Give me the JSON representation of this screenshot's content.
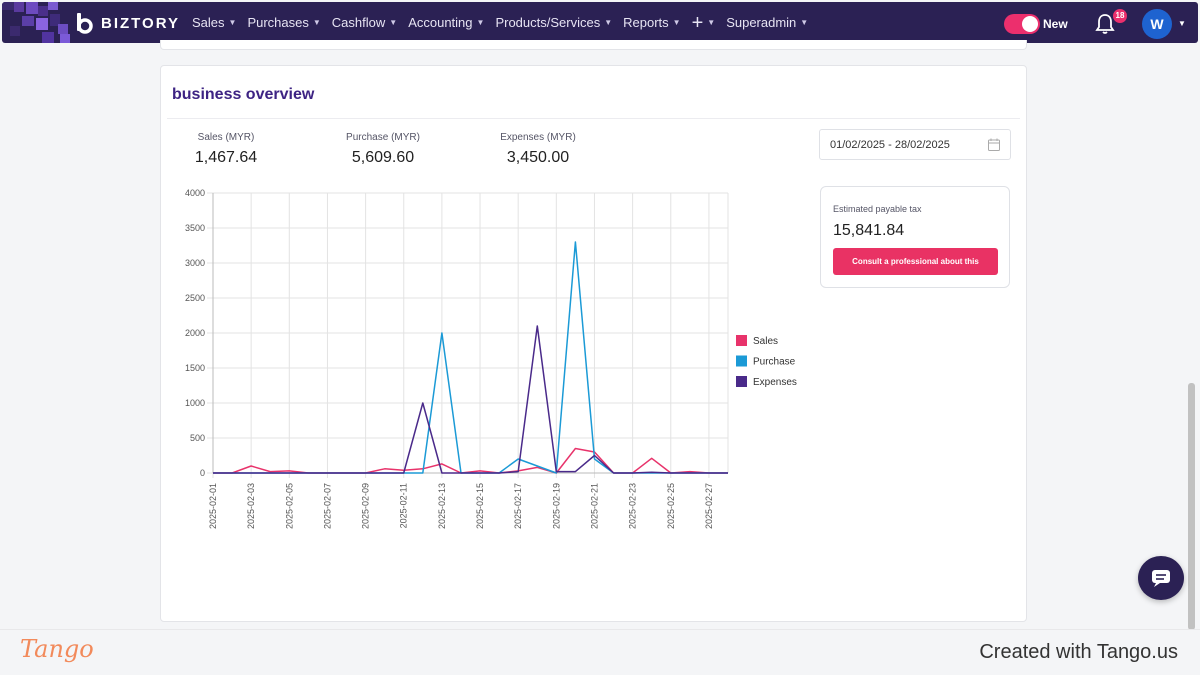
{
  "nav": {
    "logo_text": "BIZTORY",
    "items": [
      "Sales",
      "Purchases",
      "Cashflow",
      "Accounting",
      "Products/Services",
      "Reports",
      "+",
      "Superadmin"
    ],
    "toggle_label": "New",
    "notification_count": "18",
    "avatar_initial": "W"
  },
  "card": {
    "title": "business overview",
    "stats": [
      {
        "label": "Sales (MYR)",
        "value": "1,467.64"
      },
      {
        "label": "Purchase (MYR)",
        "value": "5,609.60"
      },
      {
        "label": "Expenses (MYR)",
        "value": "3,450.00"
      }
    ],
    "date_range": "01/02/2025 - 28/02/2025",
    "tax": {
      "label": "Estimated payable tax",
      "value": "15,841.84",
      "button": "Consult a professional about this"
    }
  },
  "chart_data": {
    "type": "line",
    "title": "",
    "xlabel": "",
    "ylabel": "",
    "ylim": [
      0,
      4000
    ],
    "yticks": [
      0,
      500,
      1000,
      1500,
      2000,
      2500,
      3000,
      3500,
      4000
    ],
    "x": [
      "2025-02-01",
      "2025-02-02",
      "2025-02-03",
      "2025-02-04",
      "2025-02-05",
      "2025-02-06",
      "2025-02-07",
      "2025-02-08",
      "2025-02-09",
      "2025-02-10",
      "2025-02-11",
      "2025-02-12",
      "2025-02-13",
      "2025-02-14",
      "2025-02-15",
      "2025-02-16",
      "2025-02-17",
      "2025-02-18",
      "2025-02-19",
      "2025-02-20",
      "2025-02-21",
      "2025-02-22",
      "2025-02-23",
      "2025-02-24",
      "2025-02-25",
      "2025-02-26",
      "2025-02-27",
      "2025-02-28"
    ],
    "xtick_labels": [
      "2025-02-01",
      "2025-02-03",
      "2025-02-05",
      "2025-02-07",
      "2025-02-09",
      "2025-02-11",
      "2025-02-13",
      "2025-02-15",
      "2025-02-17",
      "2025-02-19",
      "2025-02-21",
      "2025-02-23",
      "2025-02-25",
      "2025-02-27"
    ],
    "grid": true,
    "legend": "right",
    "series": [
      {
        "name": "Sales",
        "color": "#e8336b",
        "values": [
          0,
          0,
          100,
          20,
          30,
          0,
          0,
          0,
          0,
          60,
          40,
          60,
          130,
          0,
          30,
          0,
          30,
          80,
          0,
          350,
          300,
          0,
          0,
          210,
          0,
          20,
          0,
          0
        ]
      },
      {
        "name": "Purchase",
        "color": "#1b9ad6",
        "values": [
          0,
          0,
          0,
          0,
          0,
          0,
          0,
          0,
          0,
          0,
          0,
          0,
          2000,
          0,
          0,
          0,
          200,
          100,
          0,
          3300,
          200,
          0,
          0,
          0,
          0,
          0,
          0,
          0
        ]
      },
      {
        "name": "Expenses",
        "color": "#4a2a8a",
        "values": [
          0,
          0,
          0,
          0,
          0,
          0,
          0,
          0,
          0,
          0,
          0,
          1000,
          0,
          0,
          0,
          0,
          20,
          2100,
          20,
          20,
          250,
          0,
          0,
          10,
          0,
          0,
          0,
          0
        ]
      }
    ]
  },
  "footer": {
    "brand": "Tango",
    "created_text": "Created with Tango.us"
  }
}
